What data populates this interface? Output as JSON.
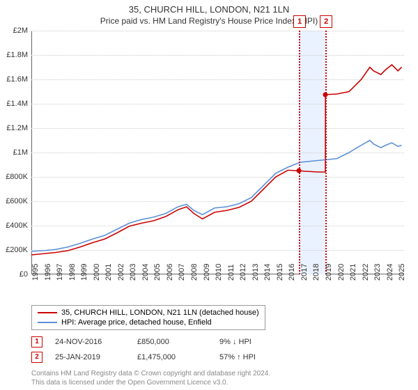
{
  "title": "35, CHURCH HILL, LONDON, N21 1LN",
  "subtitle": "Price paid vs. HM Land Registry's House Price Index (HPI)",
  "chart": {
    "type": "line",
    "ylim": [
      0,
      2000000
    ],
    "ytick_step": 200000,
    "ytick_labels": [
      "£0",
      "£200K",
      "£400K",
      "£600K",
      "£800K",
      "£1M",
      "£1.2M",
      "£1.4M",
      "£1.6M",
      "£1.8M",
      "£2M"
    ],
    "xlim": [
      1995,
      2025.5
    ],
    "xtick_years": [
      1995,
      1996,
      1997,
      1998,
      1999,
      2000,
      2001,
      2002,
      2003,
      2004,
      2005,
      2006,
      2007,
      2008,
      2009,
      2010,
      2011,
      2012,
      2013,
      2014,
      2015,
      2016,
      2017,
      2018,
      2019,
      2020,
      2021,
      2022,
      2023,
      2024,
      2025
    ],
    "background_color": "#ffffff",
    "grid_color": "#cccccc",
    "series": [
      {
        "name": "35, CHURCH HILL, LONDON, N21 1LN (detached house)",
        "color": "#cc0000",
        "data": [
          [
            1995,
            160000
          ],
          [
            1996,
            170000
          ],
          [
            1997,
            180000
          ],
          [
            1998,
            195000
          ],
          [
            1999,
            225000
          ],
          [
            2000,
            260000
          ],
          [
            2001,
            290000
          ],
          [
            2002,
            340000
          ],
          [
            2003,
            395000
          ],
          [
            2004,
            420000
          ],
          [
            2005,
            440000
          ],
          [
            2006,
            475000
          ],
          [
            2007,
            530000
          ],
          [
            2007.7,
            555000
          ],
          [
            2008.3,
            500000
          ],
          [
            2009,
            455000
          ],
          [
            2010,
            510000
          ],
          [
            2011,
            525000
          ],
          [
            2012,
            550000
          ],
          [
            2013,
            600000
          ],
          [
            2014,
            700000
          ],
          [
            2015,
            800000
          ],
          [
            2016,
            855000
          ],
          [
            2016.9,
            850000
          ],
          [
            2017.6,
            845000
          ],
          [
            2018.5,
            840000
          ],
          [
            2019.06,
            840000
          ],
          [
            2019.07,
            1475000
          ],
          [
            2020,
            1480000
          ],
          [
            2021,
            1500000
          ],
          [
            2022,
            1600000
          ],
          [
            2022.7,
            1700000
          ],
          [
            2023,
            1670000
          ],
          [
            2023.6,
            1640000
          ],
          [
            2024,
            1680000
          ],
          [
            2024.5,
            1720000
          ],
          [
            2025,
            1670000
          ],
          [
            2025.3,
            1700000
          ]
        ]
      },
      {
        "name": "HPI: Average price, detached house, Enfield",
        "color": "#5b8fd6",
        "data": [
          [
            1995,
            190000
          ],
          [
            1996,
            195000
          ],
          [
            1997,
            205000
          ],
          [
            1998,
            225000
          ],
          [
            1999,
            255000
          ],
          [
            2000,
            290000
          ],
          [
            2001,
            320000
          ],
          [
            2002,
            370000
          ],
          [
            2003,
            420000
          ],
          [
            2004,
            450000
          ],
          [
            2005,
            470000
          ],
          [
            2006,
            500000
          ],
          [
            2007,
            555000
          ],
          [
            2007.7,
            575000
          ],
          [
            2008.3,
            525000
          ],
          [
            2009,
            490000
          ],
          [
            2010,
            545000
          ],
          [
            2011,
            555000
          ],
          [
            2012,
            580000
          ],
          [
            2013,
            630000
          ],
          [
            2014,
            730000
          ],
          [
            2015,
            830000
          ],
          [
            2016,
            880000
          ],
          [
            2017,
            920000
          ],
          [
            2018,
            930000
          ],
          [
            2019,
            940000
          ],
          [
            2020,
            950000
          ],
          [
            2021,
            1000000
          ],
          [
            2022,
            1060000
          ],
          [
            2022.7,
            1100000
          ],
          [
            2023,
            1070000
          ],
          [
            2023.6,
            1040000
          ],
          [
            2024,
            1060000
          ],
          [
            2024.5,
            1080000
          ],
          [
            2025,
            1050000
          ],
          [
            2025.3,
            1060000
          ]
        ]
      }
    ],
    "sale_markers": [
      {
        "id": "1",
        "year": 2016.9,
        "price": 850000
      },
      {
        "id": "2",
        "year": 2019.07,
        "price": 1475000
      }
    ],
    "shade": {
      "from": 2016.9,
      "to": 2019.07,
      "color": "#eaf2ff"
    }
  },
  "legend": {
    "items": [
      {
        "color": "#cc0000",
        "label": "35, CHURCH HILL, LONDON, N21 1LN (detached house)"
      },
      {
        "color": "#5b8fd6",
        "label": "HPI: Average price, detached house, Enfield"
      }
    ]
  },
  "sales": [
    {
      "id": "1",
      "date": "24-NOV-2016",
      "price": "£850,000",
      "delta": "9% ↓ HPI"
    },
    {
      "id": "2",
      "date": "25-JAN-2019",
      "price": "£1,475,000",
      "delta": "57% ↑ HPI"
    }
  ],
  "footer": {
    "line1": "Contains HM Land Registry data © Crown copyright and database right 2024.",
    "line2": "This data is licensed under the Open Government Licence v3.0."
  }
}
